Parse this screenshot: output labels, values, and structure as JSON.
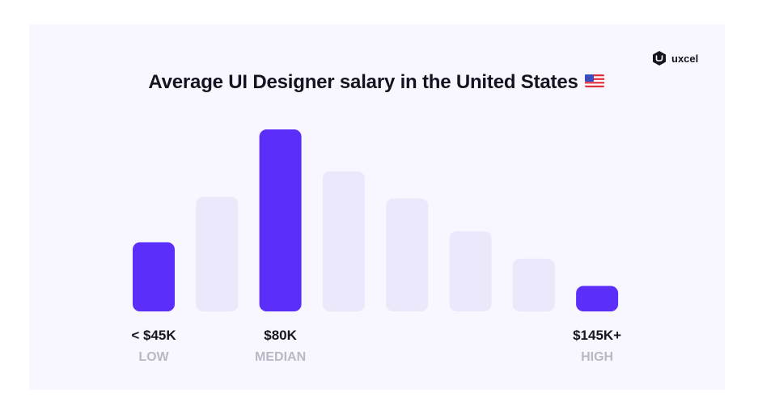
{
  "title": "Average UI Designer salary in the United States",
  "brand": {
    "name": "uxcel",
    "icon": "uxcel-logo-icon"
  },
  "flag_icon": "us-flag-icon",
  "colors": {
    "highlight": "#5b2ff9",
    "muted": "#ebe8fb",
    "background": "#f8f7ff"
  },
  "chart_data": {
    "type": "bar",
    "title": "Average UI Designer salary in the United States",
    "xlabel": "",
    "ylabel": "",
    "values": [
      38,
      63,
      100,
      77,
      62,
      44,
      29,
      14
    ],
    "highlighted": [
      0,
      2,
      7
    ],
    "grid": false,
    "legend": "none",
    "annotations": [
      {
        "bar": 0,
        "value": "< $45K",
        "label": "LOW"
      },
      {
        "bar": 2,
        "value": "$80K",
        "label": "MEDIAN"
      },
      {
        "bar": 7,
        "value": "$145K+",
        "label": "HIGH"
      }
    ]
  }
}
